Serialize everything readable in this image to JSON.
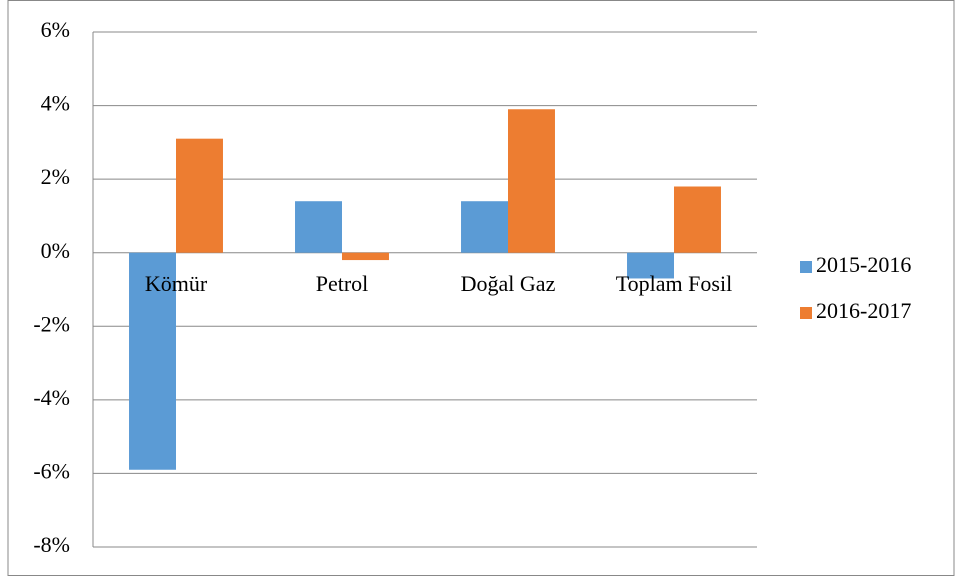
{
  "chart_data": {
    "type": "bar",
    "categories": [
      "Kömür",
      "Petrol",
      "Doğal Gaz",
      "Toplam Fosil"
    ],
    "series": [
      {
        "name": "2015-2016",
        "color": "#5b9bd5",
        "values": [
          -5.9,
          1.4,
          1.4,
          -0.7
        ]
      },
      {
        "name": "2016-2017",
        "color": "#ed7d31",
        "values": [
          3.1,
          -0.2,
          3.9,
          1.8
        ]
      }
    ],
    "ylim": [
      -8,
      6
    ],
    "yticks": [
      {
        "value": -8,
        "label": "-8%"
      },
      {
        "value": -6,
        "label": "-6%"
      },
      {
        "value": -4,
        "label": "-4%"
      },
      {
        "value": -2,
        "label": "-2%"
      },
      {
        "value": 0,
        "label": "0%"
      },
      {
        "value": 2,
        "label": "2%"
      },
      {
        "value": 4,
        "label": "4%"
      },
      {
        "value": 6,
        "label": "6%"
      }
    ],
    "grid": true,
    "legend": "right"
  }
}
